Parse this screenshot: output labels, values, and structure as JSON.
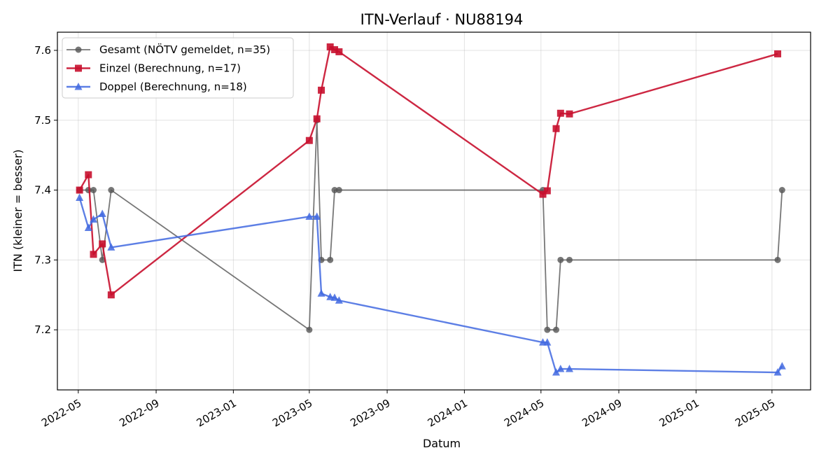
{
  "chart_data": {
    "type": "line",
    "title": "ITN-Verlauf · NU88194",
    "xlabel": "Datum",
    "ylabel": "ITN  (kleiner = besser)",
    "x_axis_type": "date",
    "xlim": [
      "2022-03-29",
      "2025-07-01"
    ],
    "ylim": [
      7.114,
      7.626
    ],
    "x_ticks": [
      "2022-05",
      "2022-09",
      "2023-01",
      "2023-05",
      "2023-09",
      "2024-01",
      "2024-05",
      "2024-09",
      "2025-01",
      "2025-05"
    ],
    "y_ticks": [
      7.2,
      7.3,
      7.4,
      7.5,
      7.6
    ],
    "grid": true,
    "legend_position": "top-left",
    "series": [
      {
        "name": "Gesamt (NÖTV gemeldet, n=35)",
        "color": "#555555",
        "marker": "circle",
        "points": [
          {
            "x": "2022-05-03",
            "y": 7.4
          },
          {
            "x": "2022-05-17",
            "y": 7.4
          },
          {
            "x": "2022-05-25",
            "y": 7.4
          },
          {
            "x": "2022-06-08",
            "y": 7.3
          },
          {
            "x": "2022-06-22",
            "y": 7.4
          },
          {
            "x": "2023-05-01",
            "y": 7.2
          },
          {
            "x": "2023-05-13",
            "y": 7.5
          },
          {
            "x": "2023-05-20",
            "y": 7.3
          },
          {
            "x": "2023-06-03",
            "y": 7.3
          },
          {
            "x": "2023-06-10",
            "y": 7.4
          },
          {
            "x": "2023-06-17",
            "y": 7.4
          },
          {
            "x": "2024-05-04",
            "y": 7.4
          },
          {
            "x": "2024-05-11",
            "y": 7.2
          },
          {
            "x": "2024-05-25",
            "y": 7.2
          },
          {
            "x": "2024-06-01",
            "y": 7.3
          },
          {
            "x": "2024-06-15",
            "y": 7.3
          },
          {
            "x": "2025-05-10",
            "y": 7.3
          },
          {
            "x": "2025-05-17",
            "y": 7.4
          }
        ]
      },
      {
        "name": "Einzel (Berechnung, n=17)",
        "color": "#c8102e",
        "marker": "square",
        "points": [
          {
            "x": "2022-05-03",
            "y": 7.4
          },
          {
            "x": "2022-05-17",
            "y": 7.422
          },
          {
            "x": "2022-05-25",
            "y": 7.308
          },
          {
            "x": "2022-06-08",
            "y": 7.323
          },
          {
            "x": "2022-06-22",
            "y": 7.25
          },
          {
            "x": "2023-05-01",
            "y": 7.471
          },
          {
            "x": "2023-05-13",
            "y": 7.502
          },
          {
            "x": "2023-05-20",
            "y": 7.543
          },
          {
            "x": "2023-06-03",
            "y": 7.605
          },
          {
            "x": "2023-06-10",
            "y": 7.601
          },
          {
            "x": "2023-06-17",
            "y": 7.598
          },
          {
            "x": "2024-05-04",
            "y": 7.394
          },
          {
            "x": "2024-05-11",
            "y": 7.399
          },
          {
            "x": "2024-05-25",
            "y": 7.488
          },
          {
            "x": "2024-06-01",
            "y": 7.51
          },
          {
            "x": "2024-06-15",
            "y": 7.509
          },
          {
            "x": "2025-05-10",
            "y": 7.595
          }
        ]
      },
      {
        "name": "Doppel (Berechnung, n=18)",
        "color": "#4169e1",
        "marker": "triangle",
        "points": [
          {
            "x": "2022-05-03",
            "y": 7.389
          },
          {
            "x": "2022-05-17",
            "y": 7.346
          },
          {
            "x": "2022-05-25",
            "y": 7.358
          },
          {
            "x": "2022-06-08",
            "y": 7.366
          },
          {
            "x": "2022-06-22",
            "y": 7.318
          },
          {
            "x": "2023-05-01",
            "y": 7.362
          },
          {
            "x": "2023-05-13",
            "y": 7.362
          },
          {
            "x": "2023-05-20",
            "y": 7.252
          },
          {
            "x": "2023-06-03",
            "y": 7.247
          },
          {
            "x": "2023-06-10",
            "y": 7.246
          },
          {
            "x": "2023-06-17",
            "y": 7.242
          },
          {
            "x": "2024-05-04",
            "y": 7.182
          },
          {
            "x": "2024-05-11",
            "y": 7.182
          },
          {
            "x": "2024-05-25",
            "y": 7.139
          },
          {
            "x": "2024-06-01",
            "y": 7.144
          },
          {
            "x": "2024-06-15",
            "y": 7.144
          },
          {
            "x": "2025-05-10",
            "y": 7.139
          },
          {
            "x": "2025-05-17",
            "y": 7.148
          }
        ]
      }
    ]
  }
}
